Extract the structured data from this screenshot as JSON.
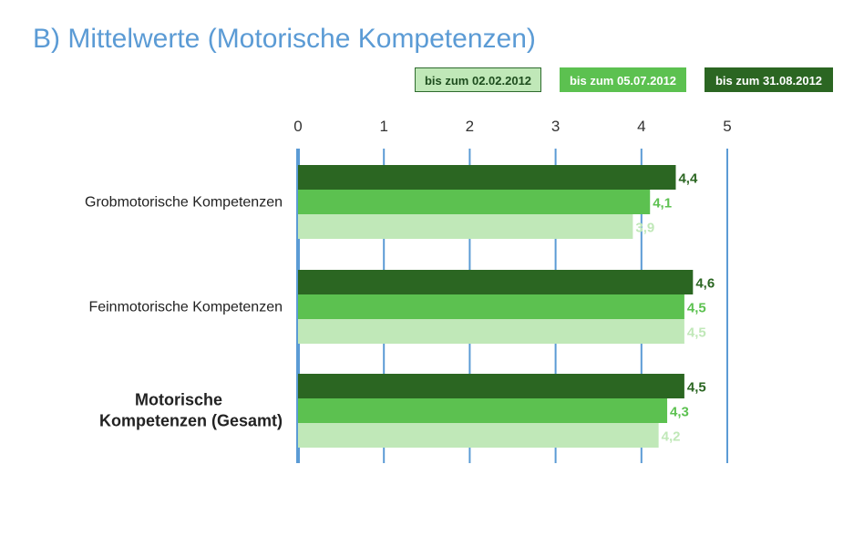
{
  "title": "B) Mittelwerte (Motorische Kompetenzen)",
  "legend": [
    {
      "label": "bis zum 02.02.2012",
      "color": "#c0e8b8",
      "text_color": "#1e4d1e",
      "border": "#2e6b2e"
    },
    {
      "label": "bis zum 05.07.2012",
      "color": "#5cc150",
      "text_color": "#ffffff",
      "border": "#5cc150"
    },
    {
      "label": "bis zum 31.08.2012",
      "color": "#2b6622",
      "text_color": "#ffffff",
      "border": "#2b6622"
    }
  ],
  "chart_data": {
    "type": "bar",
    "orientation": "horizontal",
    "title": "B) Mittelwerte (Motorische Kompetenzen)",
    "categories": [
      "Grobmotorische Kompetenzen",
      "Feinmotorische Kompetenzen",
      "Motorische Kompetenzen (Gesamt)"
    ],
    "category_bold": [
      false,
      false,
      true
    ],
    "series": [
      {
        "name": "bis zum 31.08.2012",
        "color": "#2b6622",
        "values": [
          4.4,
          4.6,
          4.5
        ],
        "labels": [
          "4,4",
          "4,6",
          "4,5"
        ]
      },
      {
        "name": "bis zum 05.07.2012",
        "color": "#5cc150",
        "values": [
          4.1,
          4.5,
          4.3
        ],
        "labels": [
          "4,1",
          "4,5",
          "4,3"
        ]
      },
      {
        "name": "bis zum 02.02.2012",
        "color": "#c0e8b8",
        "values": [
          3.9,
          4.5,
          4.2
        ],
        "labels": [
          "3,9",
          "4,5",
          "4,2"
        ]
      }
    ],
    "xlim": [
      0,
      5
    ],
    "ticks": [
      "0",
      "1",
      "2",
      "3",
      "4",
      "5"
    ],
    "grid": true,
    "grid_color": "#5b9bd5",
    "axis_position": "top",
    "legend_position": "top-right",
    "xlabel": "",
    "ylabel": ""
  }
}
